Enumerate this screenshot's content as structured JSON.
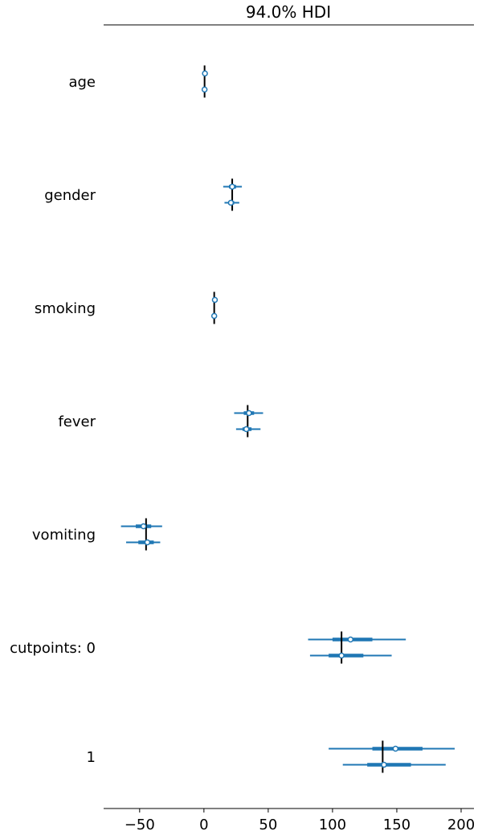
{
  "chart_data": {
    "type": "forest",
    "title": "94.0% HDI",
    "xlim": [
      -78,
      210
    ],
    "xticks": [
      -50,
      0,
      50,
      100,
      150,
      200
    ],
    "xtick_labels": [
      "−50",
      "0",
      "50",
      "100",
      "150",
      "200"
    ],
    "series_color": "#1f77b4",
    "reference_line_color": "#000000",
    "groups": [
      {
        "label": "age",
        "reference": 0.5,
        "chains": [
          {
            "mean": 0.8,
            "hdi": [
              0.3,
              1.3
            ],
            "iqr": [
              0.6,
              1.0
            ]
          },
          {
            "mean": 0.5,
            "hdi": [
              0.0,
              1.0
            ],
            "iqr": [
              0.3,
              0.7
            ]
          }
        ]
      },
      {
        "label": "gender",
        "reference": 22.0,
        "chains": [
          {
            "mean": 22.0,
            "hdi": [
              15.0,
              29.5
            ],
            "iqr": [
              19.5,
              25.0
            ]
          },
          {
            "mean": 21.0,
            "hdi": [
              16.0,
              27.5
            ],
            "iqr": [
              19.0,
              23.5
            ]
          }
        ]
      },
      {
        "label": "smoking",
        "reference": 8.0,
        "chains": [
          {
            "mean": 8.5,
            "hdi": [
              7.0,
              10.0
            ],
            "iqr": [
              7.8,
              9.2
            ]
          },
          {
            "mean": 8.0,
            "hdi": [
              6.5,
              9.5
            ],
            "iqr": [
              7.3,
              8.7
            ]
          }
        ]
      },
      {
        "label": "fever",
        "reference": 34.0,
        "chains": [
          {
            "mean": 35.0,
            "hdi": [
              23.5,
              46.0
            ],
            "iqr": [
              31.0,
              39.0
            ]
          },
          {
            "mean": 33.0,
            "hdi": [
              25.0,
              44.0
            ],
            "iqr": [
              30.0,
              37.0
            ]
          }
        ]
      },
      {
        "label": "vomiting",
        "reference": -45.0,
        "chains": [
          {
            "mean": -47.0,
            "hdi": [
              -64.5,
              -32.5
            ],
            "iqr": [
              -53.0,
              -41.0
            ]
          },
          {
            "mean": -44.0,
            "hdi": [
              -60.5,
              -34.0
            ],
            "iqr": [
              -51.0,
              -39.0
            ]
          }
        ]
      },
      {
        "label": "cutpoints: 0",
        "reference": 107.0,
        "chains": [
          {
            "mean": 114.0,
            "hdi": [
              81.0,
              157.0
            ],
            "iqr": [
              100.0,
              131.0
            ]
          },
          {
            "mean": 107.0,
            "hdi": [
              82.5,
              146.0
            ],
            "iqr": [
              97.0,
              124.0
            ]
          }
        ]
      },
      {
        "label": "1",
        "reference": 139.0,
        "chains": [
          {
            "mean": 149.0,
            "hdi": [
              97.0,
              195.0
            ],
            "iqr": [
              131.0,
              170.0
            ]
          },
          {
            "mean": 140.0,
            "hdi": [
              108.0,
              188.0
            ],
            "iqr": [
              127.0,
              161.0
            ]
          }
        ]
      }
    ]
  }
}
